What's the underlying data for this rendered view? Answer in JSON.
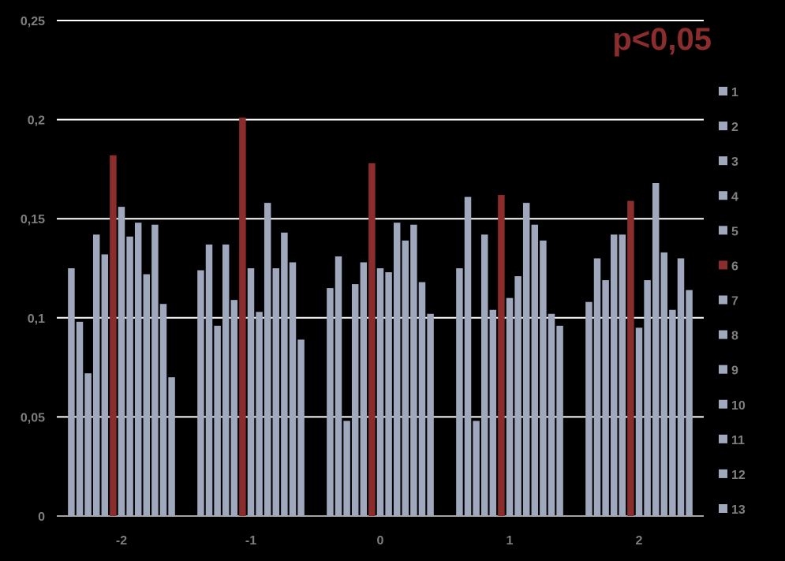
{
  "chart_data": {
    "type": "bar",
    "annotation": "p<0,05",
    "categories": [
      "-2",
      "-1",
      "0",
      "1",
      "2"
    ],
    "ylim": [
      0,
      0.25
    ],
    "yticks": [
      {
        "value": 0,
        "label": "0"
      },
      {
        "value": 0.05,
        "label": "0,05"
      },
      {
        "value": 0.1,
        "label": "0,1"
      },
      {
        "value": 0.15,
        "label": "0,15"
      },
      {
        "value": 0.2,
        "label": "0,2"
      },
      {
        "value": 0.25,
        "label": "0,25"
      }
    ],
    "grid": true,
    "legend_position": "right",
    "colors": {
      "default": "#a0a8bd",
      "highlight": "#8b2d2d",
      "grid": "#ffffff",
      "text": "#7f7f7f"
    },
    "highlight_series": "6",
    "series": [
      {
        "name": "1",
        "values": [
          0.125,
          0.124,
          0.115,
          0.125,
          0.108
        ]
      },
      {
        "name": "2",
        "values": [
          0.098,
          0.137,
          0.131,
          0.161,
          0.13
        ]
      },
      {
        "name": "3",
        "values": [
          0.072,
          0.096,
          0.048,
          0.048,
          0.119
        ]
      },
      {
        "name": "4",
        "values": [
          0.142,
          0.137,
          0.117,
          0.142,
          0.142
        ]
      },
      {
        "name": "5",
        "values": [
          0.132,
          0.109,
          0.128,
          0.104,
          0.142
        ]
      },
      {
        "name": "6",
        "values": [
          0.182,
          0.201,
          0.178,
          0.162,
          0.159
        ]
      },
      {
        "name": "7",
        "values": [
          0.156,
          0.125,
          0.125,
          0.11,
          0.095
        ]
      },
      {
        "name": "8",
        "values": [
          0.141,
          0.103,
          0.123,
          0.121,
          0.119
        ]
      },
      {
        "name": "9",
        "values": [
          0.148,
          0.158,
          0.148,
          0.158,
          0.168
        ]
      },
      {
        "name": "10",
        "values": [
          0.122,
          0.125,
          0.139,
          0.147,
          0.133
        ]
      },
      {
        "name": "11",
        "values": [
          0.147,
          0.143,
          0.147,
          0.139,
          0.104
        ]
      },
      {
        "name": "12",
        "values": [
          0.107,
          0.128,
          0.118,
          0.102,
          0.13
        ]
      },
      {
        "name": "13",
        "values": [
          0.07,
          0.089,
          0.102,
          0.096,
          0.114
        ]
      }
    ]
  }
}
